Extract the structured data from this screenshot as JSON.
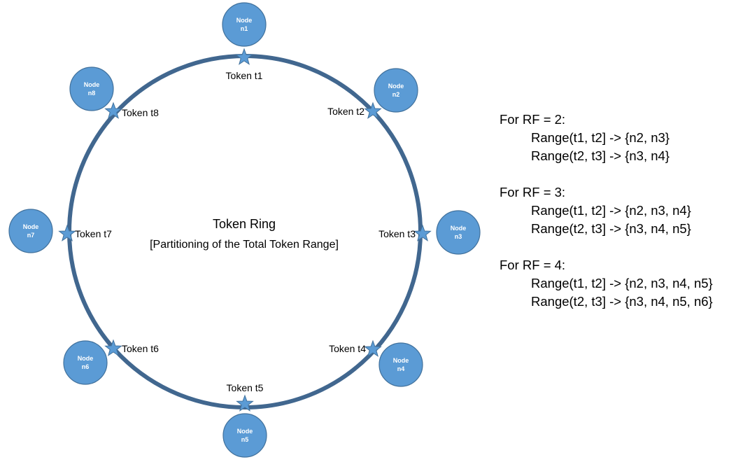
{
  "colors": {
    "ring": "#41678f",
    "node_fill": "#5b9bd5",
    "node_stroke": "#41719c"
  },
  "ring": {
    "title": "Token Ring",
    "subtitle": "[Partitioning of the Total Token Range]"
  },
  "nodes": [
    {
      "line1": "Node",
      "line2": "n1",
      "token": "Token t1"
    },
    {
      "line1": "Node",
      "line2": "n2",
      "token": "Token t2"
    },
    {
      "line1": "Node",
      "line2": "n3",
      "token": "Token t3"
    },
    {
      "line1": "Node",
      "line2": "n4",
      "token": "Token t4"
    },
    {
      "line1": "Node",
      "line2": "n5",
      "token": "Token t5"
    },
    {
      "line1": "Node",
      "line2": "n6",
      "token": "Token t6"
    },
    {
      "line1": "Node",
      "line2": "n7",
      "token": "Token t7"
    },
    {
      "line1": "Node",
      "line2": "n8",
      "token": "Token t8"
    }
  ],
  "replication": [
    {
      "heading": "For RF = 2:",
      "lines": [
        "Range(t1, t2] -> {n2, n3}",
        "Range(t2, t3] -> {n3, n4}"
      ]
    },
    {
      "heading": "For RF = 3:",
      "lines": [
        "Range(t1, t2] -> {n2, n3, n4}",
        "Range(t2, t3] -> {n3, n4, n5}"
      ]
    },
    {
      "heading": "For RF = 4:",
      "lines": [
        "Range(t1, t2] -> {n2, n3, n4, n5}",
        "Range(t2, t3] -> {n3, n4, n5, n6}"
      ]
    }
  ]
}
